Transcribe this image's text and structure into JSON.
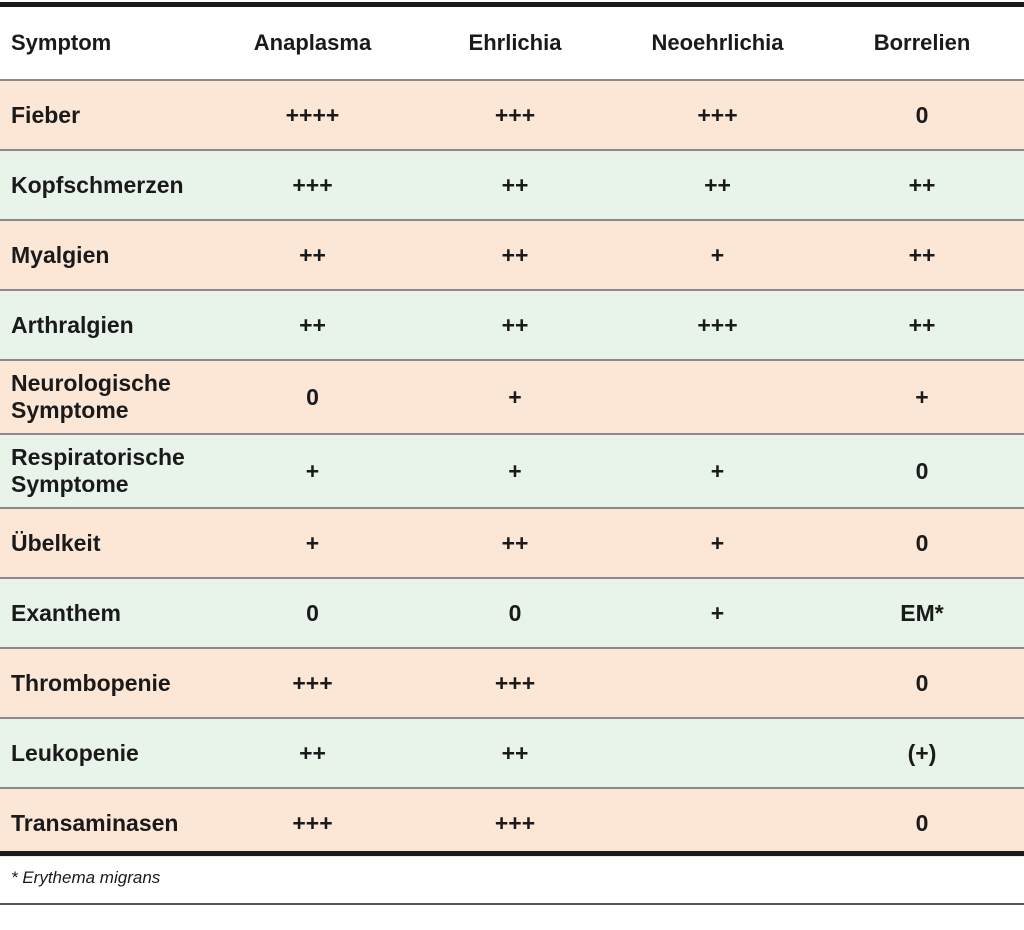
{
  "table": {
    "headers": [
      "Symptom",
      "Anaplasma",
      "Ehrlichia",
      "Neoehrlichia",
      "Borrelien"
    ],
    "rows": [
      {
        "symptom": "Fieber",
        "values": [
          "++++",
          "+++",
          "+++",
          "0"
        ]
      },
      {
        "symptom": "Kopfschmerzen",
        "values": [
          "+++",
          "++",
          "++",
          "++"
        ]
      },
      {
        "symptom": "Myalgien",
        "values": [
          "++",
          "++",
          "+",
          "++"
        ]
      },
      {
        "symptom": "Arthralgien",
        "values": [
          "++",
          "++",
          "+++",
          "++"
        ]
      },
      {
        "symptom": "Neurologische Symptome",
        "values": [
          "0",
          "+",
          "",
          "+"
        ]
      },
      {
        "symptom": "Respiratorische Symptome",
        "values": [
          "+",
          "+",
          "+",
          "0"
        ]
      },
      {
        "symptom": "Übelkeit",
        "values": [
          "+",
          "++",
          "+",
          "0"
        ]
      },
      {
        "symptom": "Exanthem",
        "values": [
          "0",
          "0",
          "+",
          "EM*"
        ]
      },
      {
        "symptom": "Thrombopenie",
        "values": [
          "+++",
          "+++",
          "",
          "0"
        ]
      },
      {
        "symptom": "Leukopenie",
        "values": [
          "++",
          "++",
          "",
          "(+)"
        ]
      },
      {
        "symptom": "Transaminasen",
        "values": [
          "+++",
          "+++",
          "",
          "0"
        ]
      }
    ]
  },
  "footnote": "* Erythema migrans",
  "colors": {
    "row_orange": "#fce6d5",
    "row_green": "#e8f3e9",
    "rule": "#1a1a1a"
  }
}
